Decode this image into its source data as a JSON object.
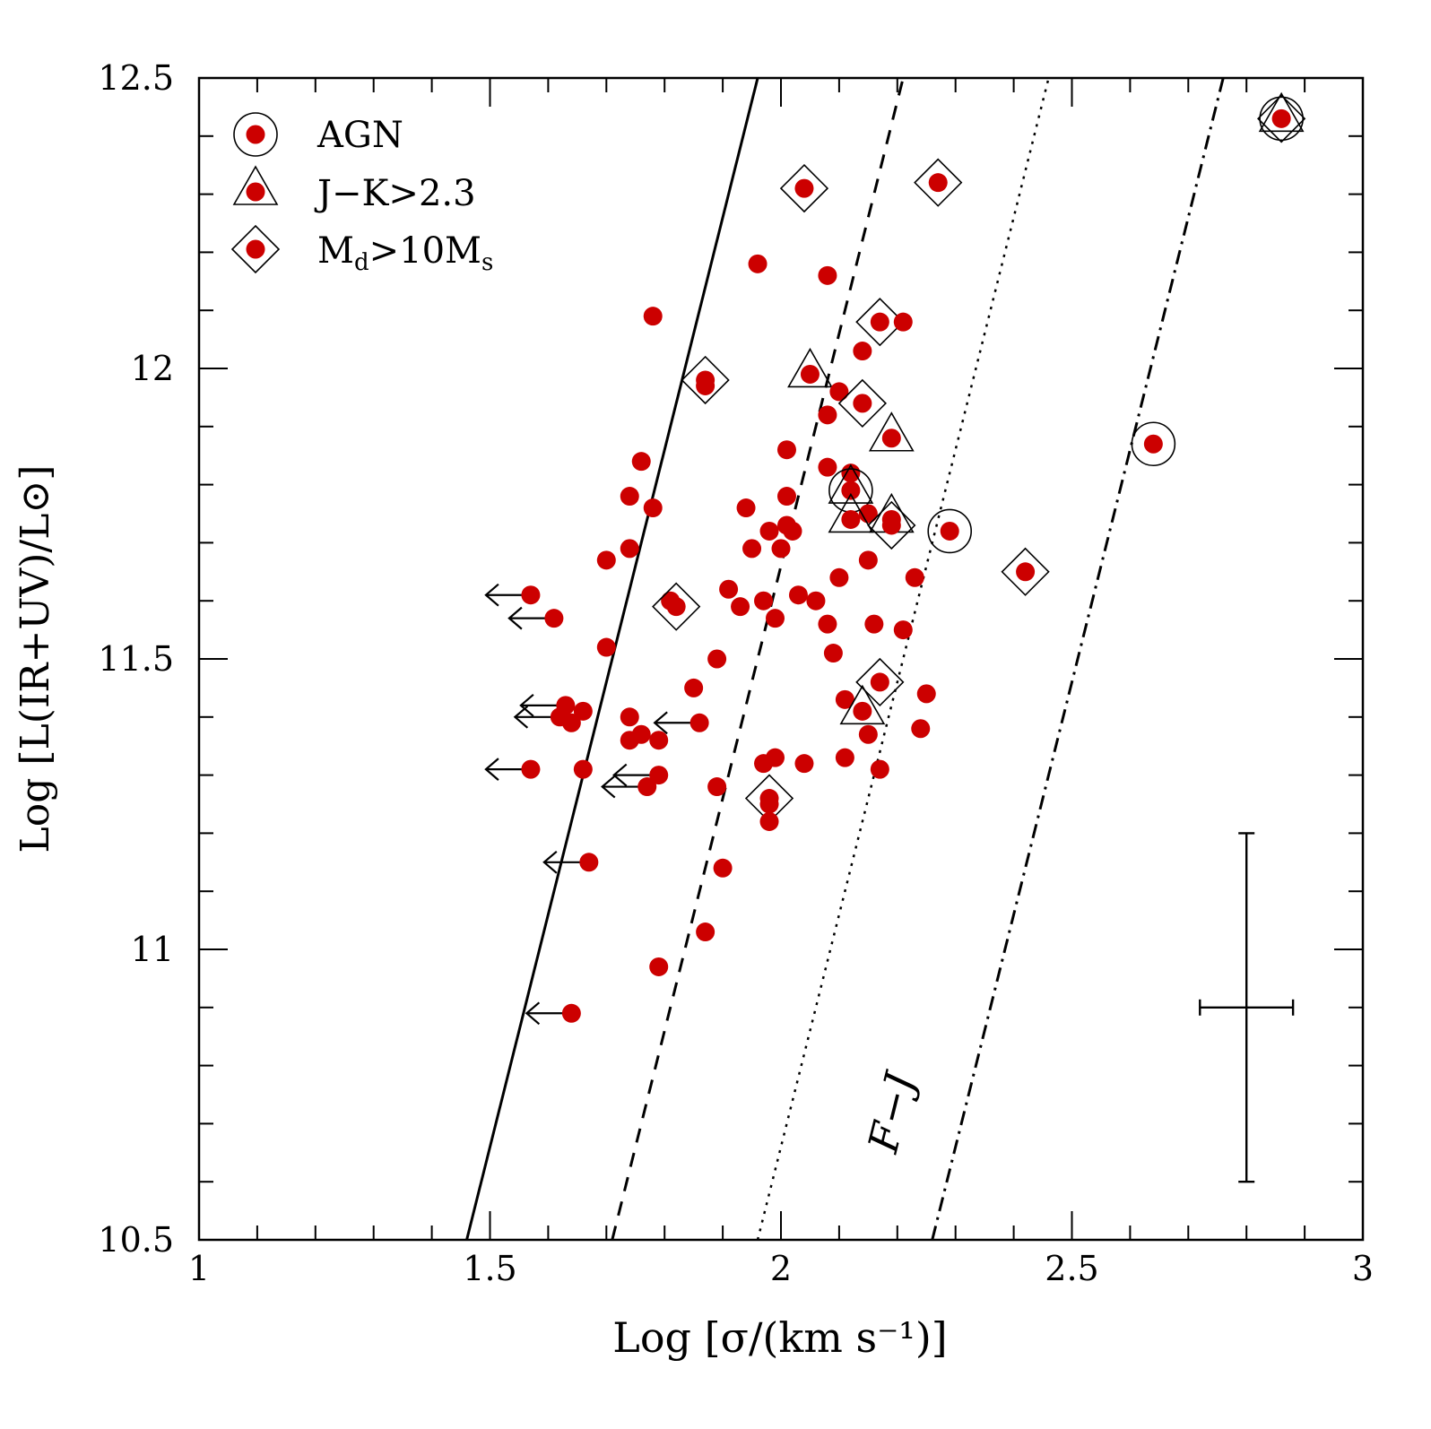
{
  "chart_data": {
    "type": "scatter",
    "xlabel": "Log [σ/(km s⁻¹)]",
    "ylabel": "Log [L(IR+UV)/L⊙]",
    "xlim": [
      1,
      3
    ],
    "ylim": [
      10.5,
      12.5
    ],
    "x_ticks": [
      "1",
      "1.5",
      "2",
      "2.5",
      "3"
    ],
    "x_tick_values": [
      1,
      1.5,
      2,
      2.5,
      3
    ],
    "y_ticks": [
      "10.5",
      "11",
      "11.5",
      "12",
      "12.5"
    ],
    "y_tick_values": [
      10.5,
      11,
      11.5,
      12,
      12.5
    ],
    "legend": [
      {
        "marker": "circle",
        "label": "AGN"
      },
      {
        "marker": "triangle",
        "label": "J−K>2.3"
      },
      {
        "marker": "diamond",
        "label": "Md>10Ms",
        "main": "M",
        "sub1": "d",
        "mid": ">10M",
        "sub2": "s"
      }
    ],
    "line_label": "F−J",
    "relations": [
      {
        "name": "solid",
        "style": "solid",
        "x0": 1.46,
        "x1": 1.96
      },
      {
        "name": "dashed",
        "style": "dashed",
        "x0": 1.71,
        "x1": 2.21
      },
      {
        "name": "dotted",
        "style": "dotted",
        "x0": 1.96,
        "x1": 2.46
      },
      {
        "name": "dash-dot",
        "style": "dashdot",
        "x0": 2.26,
        "x1": 2.76
      }
    ],
    "error_bar": {
      "x": 2.8,
      "y": 10.9,
      "xerr": 0.08,
      "yerr": 0.3
    },
    "points": [
      {
        "x": 2.86,
        "y": 12.43,
        "flags": [
          "circle",
          "triangle",
          "diamond"
        ]
      },
      {
        "x": 2.04,
        "y": 12.31,
        "flags": [
          "diamond"
        ]
      },
      {
        "x": 2.27,
        "y": 12.32,
        "flags": [
          "diamond"
        ]
      },
      {
        "x": 1.96,
        "y": 12.18,
        "flags": []
      },
      {
        "x": 2.08,
        "y": 12.16,
        "flags": []
      },
      {
        "x": 1.78,
        "y": 12.09,
        "flags": []
      },
      {
        "x": 2.17,
        "y": 12.08,
        "flags": [
          "diamond"
        ]
      },
      {
        "x": 2.21,
        "y": 12.08,
        "flags": []
      },
      {
        "x": 2.14,
        "y": 12.03,
        "flags": []
      },
      {
        "x": 1.87,
        "y": 11.98,
        "flags": [
          "diamond"
        ]
      },
      {
        "x": 1.87,
        "y": 11.97,
        "flags": []
      },
      {
        "x": 2.05,
        "y": 11.99,
        "flags": [
          "triangle"
        ]
      },
      {
        "x": 2.1,
        "y": 11.96,
        "flags": []
      },
      {
        "x": 2.14,
        "y": 11.94,
        "flags": [
          "diamond"
        ]
      },
      {
        "x": 2.08,
        "y": 11.92,
        "flags": []
      },
      {
        "x": 2.19,
        "y": 11.88,
        "flags": [
          "triangle"
        ]
      },
      {
        "x": 2.64,
        "y": 11.87,
        "flags": [
          "circle"
        ]
      },
      {
        "x": 2.01,
        "y": 11.86,
        "flags": []
      },
      {
        "x": 1.76,
        "y": 11.84,
        "flags": []
      },
      {
        "x": 2.08,
        "y": 11.83,
        "flags": []
      },
      {
        "x": 2.12,
        "y": 11.82,
        "flags": []
      },
      {
        "x": 2.12,
        "y": 11.79,
        "flags": [
          "circle",
          "triangle"
        ]
      },
      {
        "x": 1.74,
        "y": 11.78,
        "flags": []
      },
      {
        "x": 2.01,
        "y": 11.78,
        "flags": []
      },
      {
        "x": 1.94,
        "y": 11.76,
        "flags": []
      },
      {
        "x": 1.78,
        "y": 11.76,
        "flags": []
      },
      {
        "x": 2.15,
        "y": 11.75,
        "flags": []
      },
      {
        "x": 2.12,
        "y": 11.74,
        "flags": [
          "triangle"
        ]
      },
      {
        "x": 2.19,
        "y": 11.74,
        "flags": [
          "triangle"
        ]
      },
      {
        "x": 2.19,
        "y": 11.73,
        "flags": [
          "diamond"
        ]
      },
      {
        "x": 2.29,
        "y": 11.72,
        "flags": [
          "circle"
        ]
      },
      {
        "x": 2.01,
        "y": 11.73,
        "flags": []
      },
      {
        "x": 1.98,
        "y": 11.72,
        "flags": []
      },
      {
        "x": 2.02,
        "y": 11.72,
        "flags": []
      },
      {
        "x": 1.95,
        "y": 11.69,
        "flags": []
      },
      {
        "x": 2.0,
        "y": 11.69,
        "flags": []
      },
      {
        "x": 1.74,
        "y": 11.69,
        "flags": []
      },
      {
        "x": 1.7,
        "y": 11.67,
        "flags": []
      },
      {
        "x": 2.15,
        "y": 11.67,
        "flags": []
      },
      {
        "x": 2.42,
        "y": 11.65,
        "flags": [
          "diamond"
        ]
      },
      {
        "x": 2.1,
        "y": 11.64,
        "flags": []
      },
      {
        "x": 2.23,
        "y": 11.64,
        "flags": []
      },
      {
        "x": 1.91,
        "y": 11.62,
        "flags": []
      },
      {
        "x": 1.57,
        "y": 11.61,
        "flags": [],
        "upper_limit": true
      },
      {
        "x": 2.03,
        "y": 11.61,
        "flags": []
      },
      {
        "x": 2.06,
        "y": 11.6,
        "flags": []
      },
      {
        "x": 1.81,
        "y": 11.6,
        "flags": []
      },
      {
        "x": 1.82,
        "y": 11.59,
        "flags": [
          "diamond"
        ]
      },
      {
        "x": 1.97,
        "y": 11.6,
        "flags": []
      },
      {
        "x": 1.93,
        "y": 11.59,
        "flags": []
      },
      {
        "x": 1.61,
        "y": 11.57,
        "flags": [],
        "upper_limit": true
      },
      {
        "x": 1.99,
        "y": 11.57,
        "flags": []
      },
      {
        "x": 2.16,
        "y": 11.56,
        "flags": []
      },
      {
        "x": 2.08,
        "y": 11.56,
        "flags": []
      },
      {
        "x": 2.21,
        "y": 11.55,
        "flags": []
      },
      {
        "x": 1.7,
        "y": 11.52,
        "flags": []
      },
      {
        "x": 2.09,
        "y": 11.51,
        "flags": []
      },
      {
        "x": 1.89,
        "y": 11.5,
        "flags": []
      },
      {
        "x": 2.17,
        "y": 11.46,
        "flags": [
          "diamond"
        ]
      },
      {
        "x": 1.85,
        "y": 11.45,
        "flags": []
      },
      {
        "x": 2.25,
        "y": 11.44,
        "flags": []
      },
      {
        "x": 2.11,
        "y": 11.43,
        "flags": []
      },
      {
        "x": 2.14,
        "y": 11.41,
        "flags": [
          "triangle"
        ]
      },
      {
        "x": 1.63,
        "y": 11.42,
        "flags": [],
        "upper_limit": true
      },
      {
        "x": 1.66,
        "y": 11.41,
        "flags": []
      },
      {
        "x": 1.62,
        "y": 11.4,
        "flags": [],
        "upper_limit": true
      },
      {
        "x": 1.64,
        "y": 11.39,
        "flags": []
      },
      {
        "x": 1.74,
        "y": 11.4,
        "flags": []
      },
      {
        "x": 1.86,
        "y": 11.39,
        "flags": [],
        "upper_limit": true
      },
      {
        "x": 2.24,
        "y": 11.38,
        "flags": []
      },
      {
        "x": 1.76,
        "y": 11.37,
        "flags": []
      },
      {
        "x": 1.74,
        "y": 11.36,
        "flags": []
      },
      {
        "x": 1.79,
        "y": 11.36,
        "flags": []
      },
      {
        "x": 2.15,
        "y": 11.37,
        "flags": []
      },
      {
        "x": 2.11,
        "y": 11.33,
        "flags": []
      },
      {
        "x": 1.99,
        "y": 11.33,
        "flags": []
      },
      {
        "x": 1.97,
        "y": 11.32,
        "flags": []
      },
      {
        "x": 2.04,
        "y": 11.32,
        "flags": []
      },
      {
        "x": 1.57,
        "y": 11.31,
        "flags": [],
        "upper_limit": true
      },
      {
        "x": 1.66,
        "y": 11.31,
        "flags": []
      },
      {
        "x": 2.17,
        "y": 11.31,
        "flags": []
      },
      {
        "x": 1.79,
        "y": 11.3,
        "flags": [],
        "upper_limit": true
      },
      {
        "x": 1.89,
        "y": 11.28,
        "flags": []
      },
      {
        "x": 1.77,
        "y": 11.28,
        "flags": [],
        "upper_limit": true
      },
      {
        "x": 1.98,
        "y": 11.26,
        "flags": [
          "diamond"
        ]
      },
      {
        "x": 1.98,
        "y": 11.25,
        "flags": []
      },
      {
        "x": 1.98,
        "y": 11.22,
        "flags": []
      },
      {
        "x": 1.67,
        "y": 11.15,
        "flags": [],
        "upper_limit": true
      },
      {
        "x": 1.9,
        "y": 11.14,
        "flags": []
      },
      {
        "x": 1.87,
        "y": 11.03,
        "flags": []
      },
      {
        "x": 1.79,
        "y": 10.97,
        "flags": []
      },
      {
        "x": 1.64,
        "y": 10.89,
        "flags": [],
        "upper_limit": true
      }
    ]
  }
}
